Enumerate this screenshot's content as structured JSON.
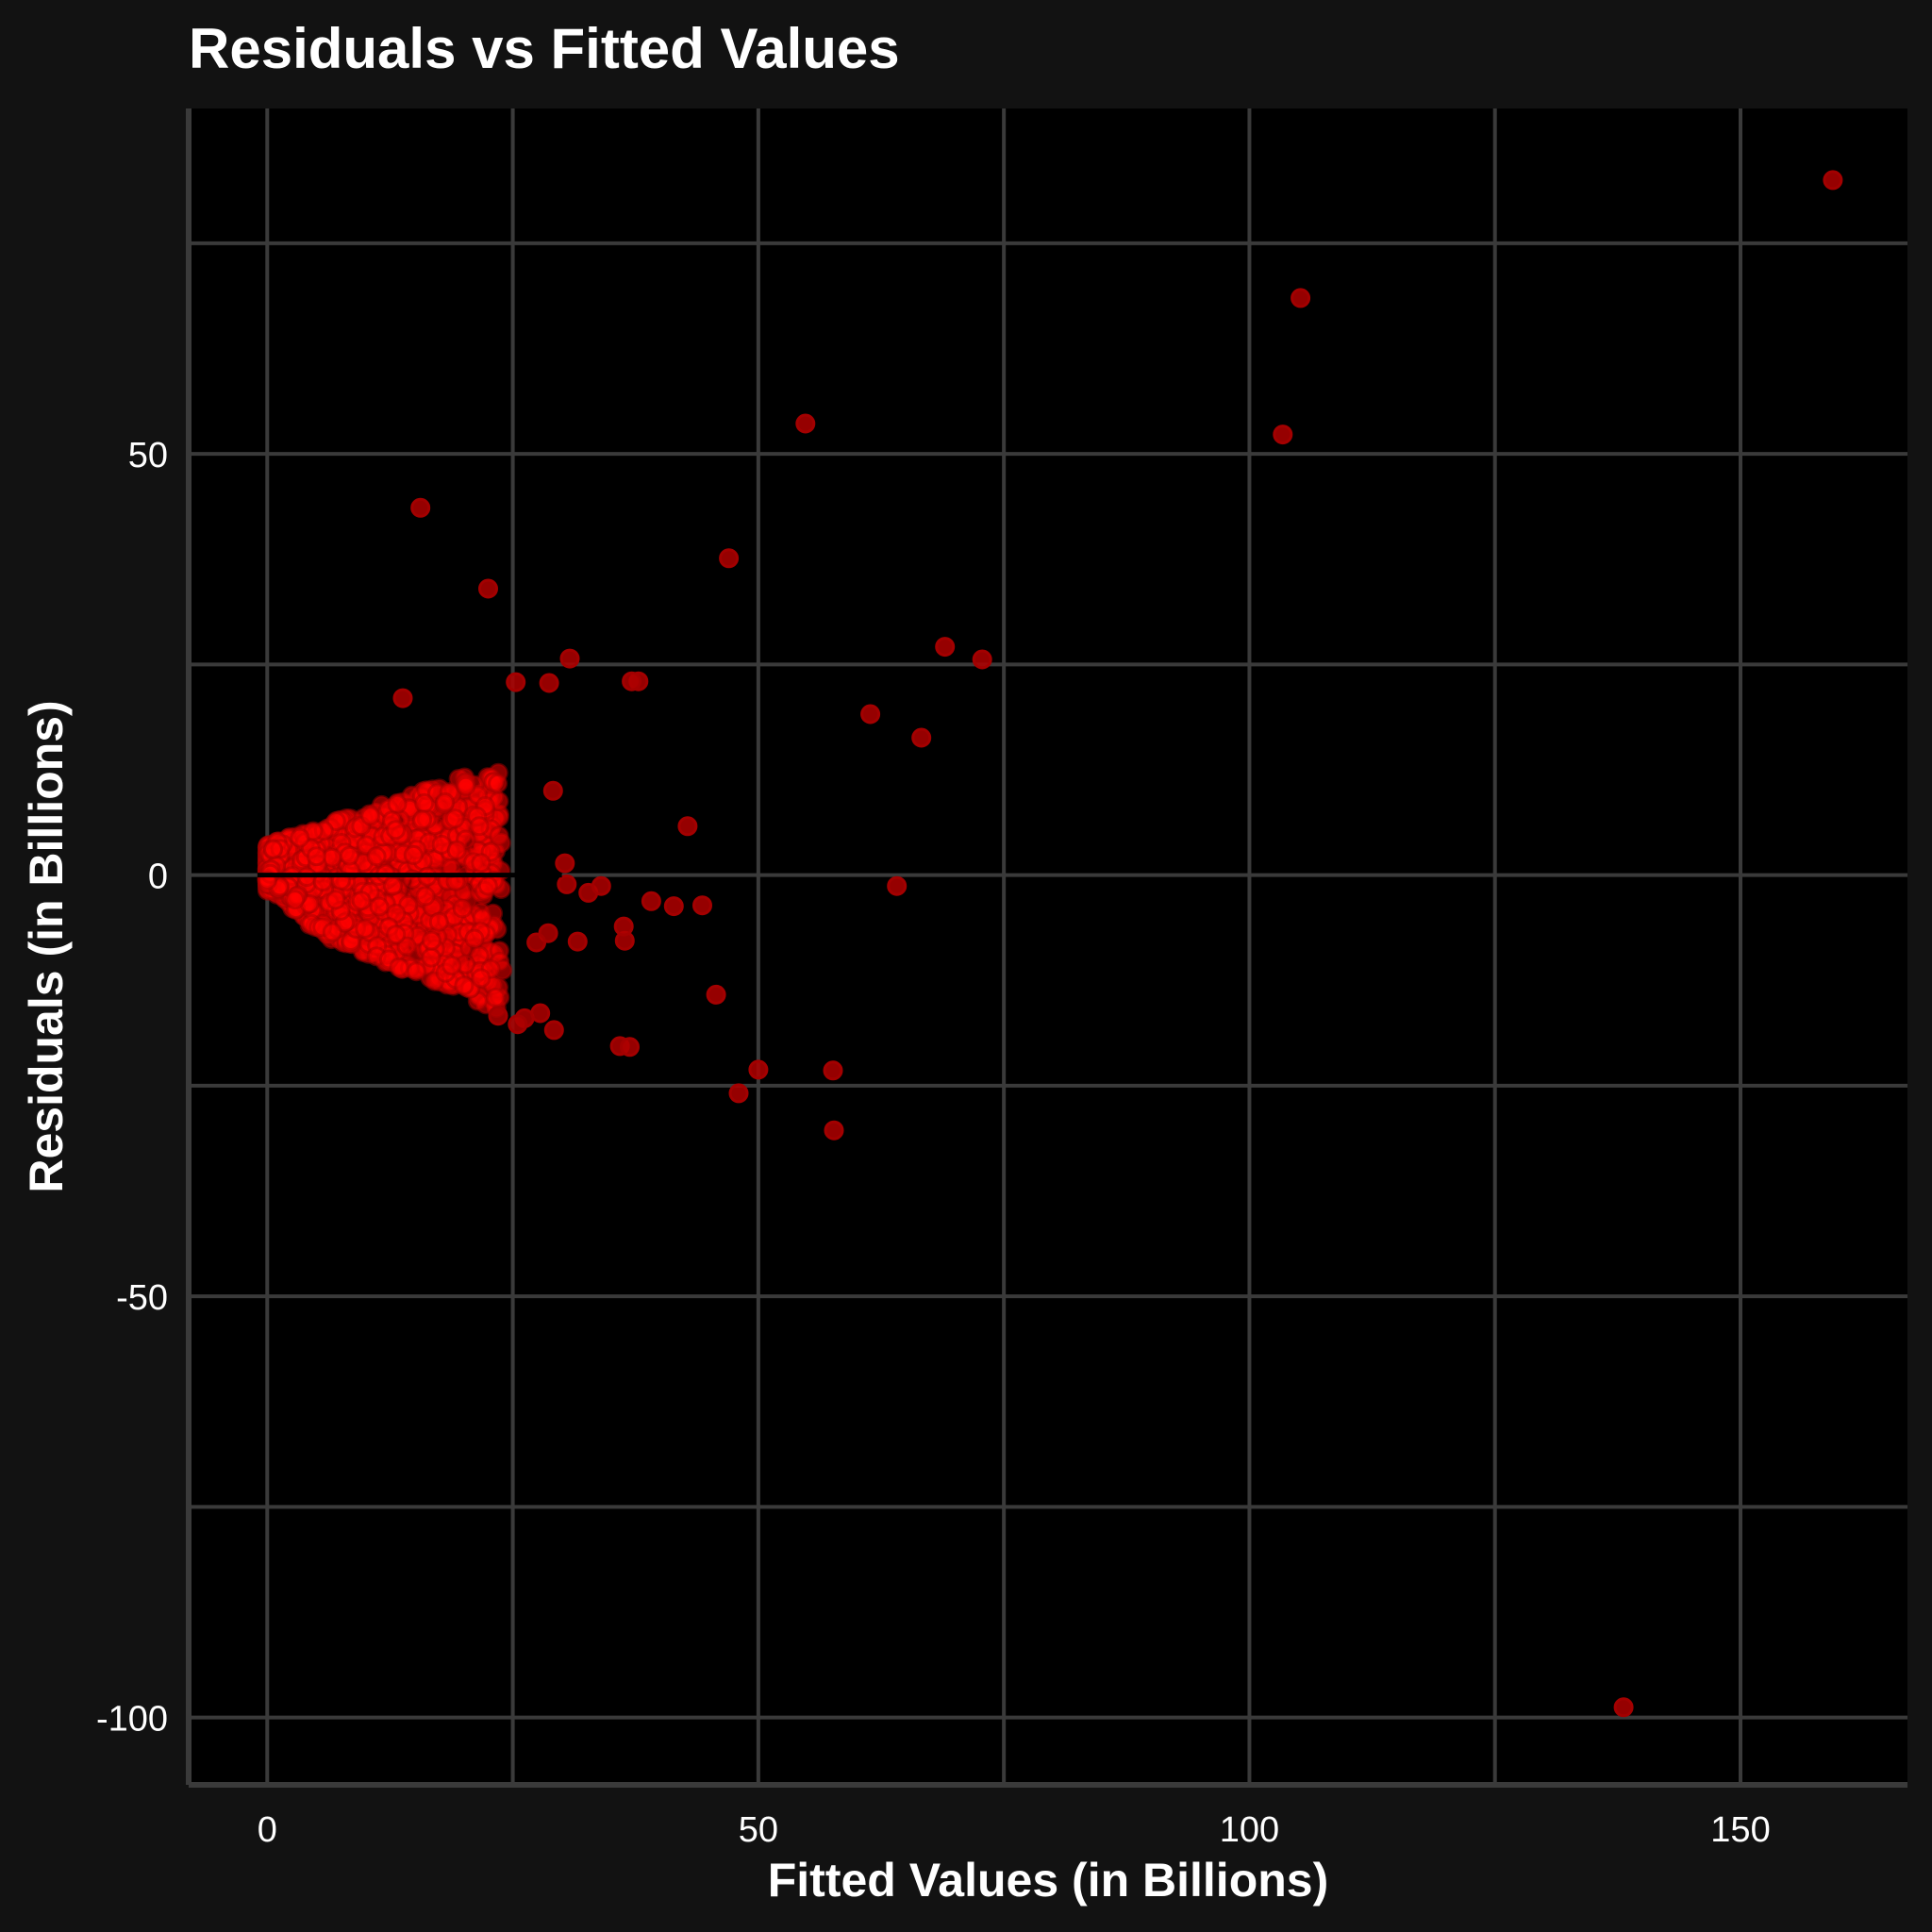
{
  "chart_data": {
    "type": "scatter",
    "title": "Residuals vs Fitted Values",
    "xlabel": "Fitted Values (in Billions)",
    "ylabel": "Residuals (in Billions)",
    "xlim": [
      -8,
      167
    ],
    "ylim": [
      -108,
      91
    ],
    "x_ticks": [
      0,
      50,
      100,
      150
    ],
    "y_ticks": [
      -100,
      -50,
      0,
      50
    ],
    "x_minor_ticks": [
      25,
      75,
      125
    ],
    "y_minor_ticks": [
      -75,
      -25,
      25,
      75
    ],
    "grid": true,
    "reference_line_y": 0,
    "point_color": "#ff0000",
    "point_edge_color": "#a30000",
    "background": "#000000",
    "panel_background": "#121212",
    "outliers": {
      "x": [
        159.4,
        105.2,
        103.4,
        54.8,
        15.6,
        47.0,
        22.5,
        30.8,
        69.0,
        72.8,
        25.3,
        28.7,
        37.8,
        37.1,
        13.8,
        61.4,
        66.6,
        42.8,
        64.1,
        41.4,
        44.3,
        45.7,
        35.9,
        36.9,
        36.4,
        50.0,
        57.6,
        48.0,
        57.7,
        138.1,
        30.3,
        30.5,
        28.6,
        26.2,
        25.5,
        27.8,
        29.2,
        32.7,
        34.0,
        39.1,
        36.3,
        31.6,
        29.1,
        27.4,
        23.5
      ],
      "y": [
        82.5,
        68.5,
        52.3,
        53.6,
        43.6,
        37.6,
        34.0,
        25.7,
        27.1,
        25.6,
        22.9,
        22.8,
        23.0,
        23.0,
        21.0,
        19.1,
        16.3,
        5.8,
        -1.3,
        -3.7,
        -3.6,
        -14.2,
        -20.3,
        -20.4,
        -7.8,
        -23.1,
        -23.2,
        -25.9,
        -30.3,
        -98.8,
        1.4,
        -1.1,
        -6.9,
        -17.0,
        -17.7,
        -16.4,
        -18.4,
        -2.1,
        -1.3,
        -3.1,
        -6.1,
        -7.9,
        10.0,
        -8.0,
        -16.7
      ]
    },
    "cluster": {
      "n": 1400,
      "x_range": [
        0,
        25
      ],
      "residual_spread": "widening with fitted value, lower bound approx -x"
    }
  }
}
